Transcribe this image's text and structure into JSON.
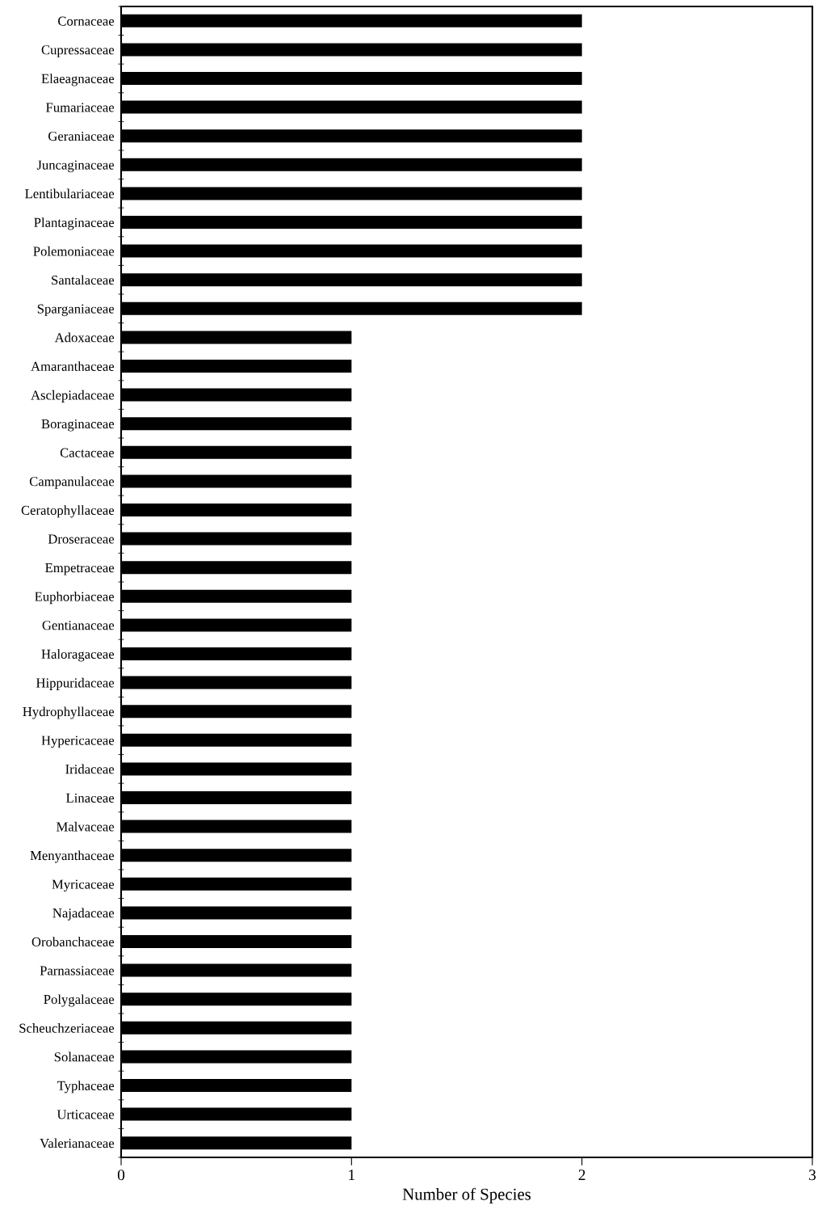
{
  "chart_data": {
    "type": "bar",
    "orientation": "horizontal",
    "xlabel": "Number of Species",
    "categories": [
      "Cornaceae",
      "Cupressaceae",
      "Elaeagnaceae",
      "Fumariaceae",
      "Geraniaceae",
      "Juncaginaceae",
      "Lentibulariaceae",
      "Plantaginaceae",
      "Polemoniaceae",
      "Santalaceae",
      "Sparganiaceae",
      "Adoxaceae",
      "Amaranthaceae",
      "Asclepiadaceae",
      "Boraginaceae",
      "Cactaceae",
      "Campanulaceae",
      "Ceratophyllaceae",
      "Droseraceae",
      "Empetraceae",
      "Euphorbiaceae",
      "Gentianaceae",
      "Haloragaceae",
      "Hippuridaceae",
      "Hydrophyllaceae",
      "Hypericaceae",
      "Iridaceae",
      "Linaceae",
      "Malvaceae",
      "Menyanthaceae",
      "Myricaceae",
      "Najadaceae",
      "Orobanchaceae",
      "Parnassiaceae",
      "Polygalaceae",
      "Scheuchzeriaceae",
      "Solanaceae",
      "Typhaceae",
      "Urticaceae",
      "Valerianaceae"
    ],
    "values": [
      2,
      2,
      2,
      2,
      2,
      2,
      2,
      2,
      2,
      2,
      2,
      1,
      1,
      1,
      1,
      1,
      1,
      1,
      1,
      1,
      1,
      1,
      1,
      1,
      1,
      1,
      1,
      1,
      1,
      1,
      1,
      1,
      1,
      1,
      1,
      1,
      1,
      1,
      1,
      1
    ],
    "color": "#000000",
    "xlim": [
      0,
      3
    ],
    "xticks": [
      0,
      1,
      2,
      3
    ],
    "grid": false,
    "legend": false
  }
}
